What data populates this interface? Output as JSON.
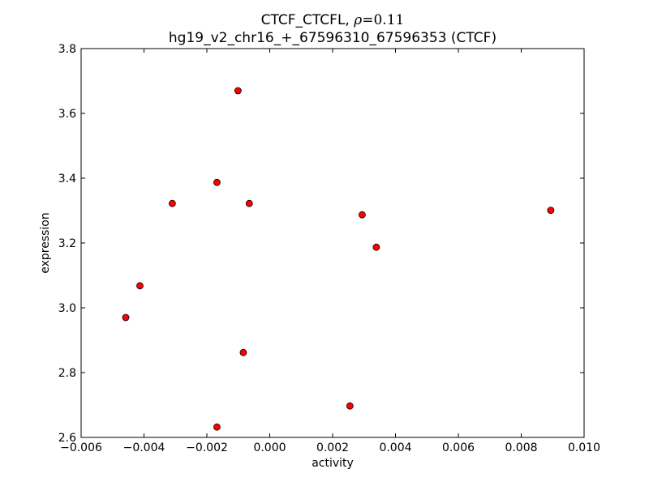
{
  "chart_data": {
    "type": "scatter",
    "title_prefix": "CTCF_CTCFL, ",
    "title_rho_symbol": "ρ",
    "title_rho_value": "=0.11",
    "subtitle": "hg19_v2_chr16_+_67596310_67596353 (CTCF)",
    "xlabel": "activity",
    "ylabel": "expression",
    "xlim": [
      -0.006,
      0.01
    ],
    "ylim": [
      2.6,
      3.8
    ],
    "xticks": [
      -0.006,
      -0.004,
      -0.002,
      0.0,
      0.002,
      0.004,
      0.006,
      0.008,
      0.01
    ],
    "xtick_labels": [
      "−0.006",
      "−0.004",
      "−0.002",
      "0.000",
      "0.002",
      "0.004",
      "0.006",
      "0.008",
      "0.010"
    ],
    "yticks": [
      2.6,
      2.8,
      3.0,
      3.2,
      3.4,
      3.6,
      3.8
    ],
    "ytick_labels": [
      "2.6",
      "2.8",
      "3.0",
      "3.2",
      "3.4",
      "3.6",
      "3.8"
    ],
    "grid": false,
    "marker_color": "#ff0000",
    "marker_edge_color": "#000000",
    "points": [
      {
        "x": -0.00101,
        "y": 3.67
      },
      {
        "x": -0.00168,
        "y": 3.387
      },
      {
        "x": -0.0031,
        "y": 3.322
      },
      {
        "x": -0.00065,
        "y": 3.322
      },
      {
        "x": 0.00894,
        "y": 3.301
      },
      {
        "x": 0.00294,
        "y": 3.287
      },
      {
        "x": 0.00339,
        "y": 3.187
      },
      {
        "x": -0.00413,
        "y": 3.068
      },
      {
        "x": -0.00458,
        "y": 2.97
      },
      {
        "x": -0.00084,
        "y": 2.862
      },
      {
        "x": 0.00255,
        "y": 2.697
      },
      {
        "x": -0.00168,
        "y": 2.632
      }
    ]
  }
}
